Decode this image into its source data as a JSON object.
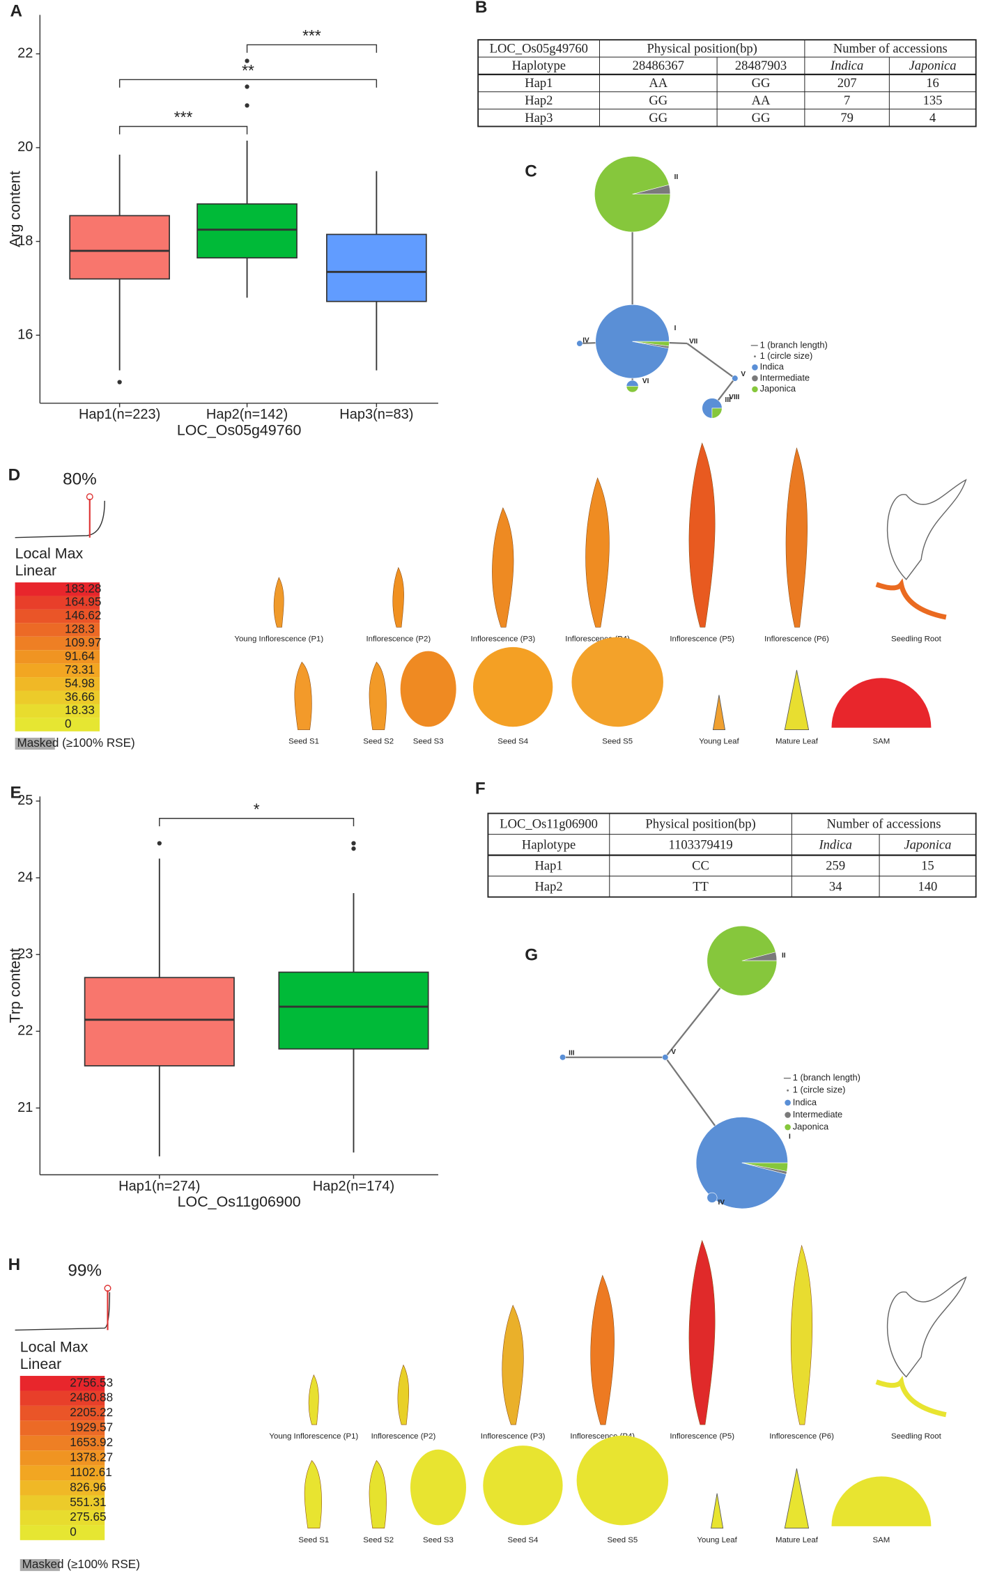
{
  "chart_data": [
    {
      "type": "box",
      "panel": "A",
      "ylabel": "Arg content",
      "xlabel": "LOC_Os05g49760",
      "categories": [
        "Hap1(n=223)",
        "Hap2(n=142)",
        "Hap3(n=83)"
      ],
      "colors": [
        "#f8766d",
        "#00ba38",
        "#619cff"
      ],
      "boxes": [
        {
          "low": 15.25,
          "q1": 17.2,
          "median": 17.8,
          "q3": 18.55,
          "high": 19.85,
          "outliers": [
            15.0
          ]
        },
        {
          "low": 16.8,
          "q1": 17.65,
          "median": 18.25,
          "q3": 18.8,
          "high": 20.15,
          "outliers": [
            20.9,
            21.3,
            21.85
          ]
        },
        {
          "low": 15.25,
          "q1": 16.72,
          "median": 17.35,
          "q3": 18.15,
          "high": 19.5,
          "outliers": []
        }
      ],
      "ylim": [
        14.55,
        22.83
      ],
      "yticks": [
        16,
        18,
        20,
        22
      ],
      "annotations": [
        "***",
        "**",
        "***"
      ]
    },
    {
      "type": "box",
      "panel": "E",
      "ylabel": "Trp content",
      "xlabel": "LOC_Os11g06900",
      "categories": [
        "Hap1(n=274)",
        "Hap2(n=174)"
      ],
      "colors": [
        "#f8766d",
        "#00ba38"
      ],
      "boxes": [
        {
          "low": 20.37,
          "q1": 21.55,
          "median": 22.15,
          "q3": 22.7,
          "high": 24.25,
          "outliers": [
            24.45
          ]
        },
        {
          "low": 20.42,
          "q1": 21.77,
          "median": 22.32,
          "q3": 22.77,
          "high": 23.8,
          "outliers": [
            24.38,
            24.45
          ]
        }
      ],
      "ylim": [
        20.13,
        25.06
      ],
      "yticks": [
        21,
        22,
        23,
        24,
        25
      ],
      "annotations": [
        "*"
      ]
    }
  ],
  "tables": [
    {
      "panel": "B",
      "rows": [
        [
          "LOC_Os05g49760",
          "Physical position(bp)",
          "Number of accessions"
        ],
        [
          "Haplotype",
          "28486367",
          "28487903",
          "Indica",
          "Japonica"
        ],
        [
          "Hap1",
          "AA",
          "GG",
          "207",
          "16"
        ],
        [
          "Hap2",
          "GG",
          "AA",
          "7",
          "135"
        ],
        [
          "Hap3",
          "GG",
          "GG",
          "79",
          "4"
        ]
      ]
    },
    {
      "panel": "F",
      "rows": [
        [
          "LOC_Os11g06900",
          "Physical position(bp)",
          "Number of accessions"
        ],
        [
          "Haplotype",
          "1103379419",
          "Indica",
          "Japonica"
        ],
        [
          "Hap1",
          "CC",
          "259",
          "15"
        ],
        [
          "Hap2",
          "TT",
          "34",
          "140"
        ]
      ]
    }
  ],
  "networks": [
    {
      "panel": "C",
      "nodes": [
        "II",
        "I",
        "IV",
        "VII",
        "VI",
        "V",
        "VIII",
        "III"
      ],
      "legend": [
        "1 (branch length)",
        "1 (circle size)",
        "Indica",
        "Intermediate",
        "Japonica"
      ]
    },
    {
      "panel": "G",
      "nodes": [
        "II",
        "V",
        "III",
        "I",
        "IV"
      ],
      "legend": [
        "1 (branch length)",
        "1 (circle size)",
        "Indica",
        "Intermediate",
        "Japonica"
      ]
    }
  ],
  "efp": [
    {
      "panel": "D",
      "percent": "80%",
      "title": "Local Max",
      "mode": "Linear",
      "scale": [
        "183.28",
        "164.95",
        "146.62",
        "128.3",
        "109.97",
        "91.64",
        "73.31",
        "54.98",
        "36.66",
        "18.33",
        "0"
      ],
      "masked": "Masked (≥100% RSE)",
      "tissues": [
        "Young Inflorescence (P1)",
        "Inflorescence (P2)",
        "Inflorescence (P3)",
        "Inflorescence (P4)",
        "Inflorescence (P5)",
        "Inflorescence (P6)",
        "Seedling Root",
        "Seed S1",
        "Seed S2",
        "Seed S3",
        "Seed S4",
        "Seed S5",
        "Young Leaf",
        "Mature Leaf",
        "SAM"
      ]
    },
    {
      "panel": "H",
      "percent": "99%",
      "title": "Local Max",
      "mode": "Linear",
      "scale": [
        "2756.53",
        "2480.88",
        "2205.22",
        "1929.57",
        "1653.92",
        "1378.27",
        "1102.61",
        "826.96",
        "551.31",
        "275.65",
        "0"
      ],
      "masked": "Masked (≥100% RSE)",
      "tissues": [
        "Young Inflorescence (P1)",
        "Inflorescence (P2)",
        "Inflorescence (P3)",
        "Inflorescence (P4)",
        "Inflorescence (P5)",
        "Inflorescence (P6)",
        "Seedling Root",
        "Seed S1",
        "Seed S2",
        "Seed S3",
        "Seed S4",
        "Seed S5",
        "Young Leaf",
        "Mature Leaf",
        "SAM"
      ]
    }
  ]
}
